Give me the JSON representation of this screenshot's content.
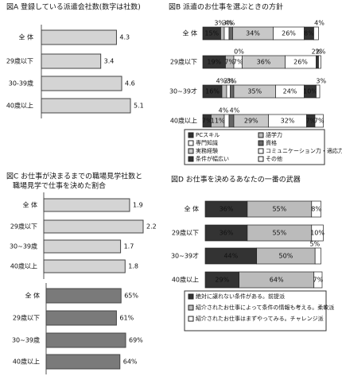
{
  "chart_data": [
    {
      "type": "bar",
      "title": "図A 登録している派遣会社数(数字は社数)",
      "categories": [
        "全 体",
        "29歳以下",
        "30-39歳",
        "40歳以上"
      ],
      "values": [
        4.3,
        3.4,
        4.6,
        5.1
      ],
      "color": "#d4d4d4"
    },
    {
      "type": "stacked_bar",
      "title": "図B 派遣のお仕事を選ぶときの方針",
      "categories": [
        "全 体",
        "29歳以下",
        "30~39才",
        "40歳以上"
      ],
      "series": [
        {
          "name": "PCスキル",
          "color": "#333333",
          "values": [
            15,
            19,
            16,
            7
          ],
          "value_labels": [
            "15%",
            "19%",
            "16%",
            "7%"
          ]
        },
        {
          "name": "語学力",
          "color": "#bbbbbb",
          "values": [
            3,
            7,
            4,
            11
          ],
          "value_labels": [
            "3%",
            "7%",
            "4%",
            "11%"
          ]
        },
        {
          "name": "専門知識",
          "color": "#ffffff",
          "values": [
            4,
            7,
            3,
            4
          ],
          "value_labels": [
            "4%",
            "7%",
            "3%",
            "4%"
          ]
        },
        {
          "name": "資格",
          "color": "#666666",
          "values": [
            3,
            0,
            3,
            4
          ],
          "value_labels": [
            "3%",
            "0%",
            "3%",
            "4%"
          ]
        },
        {
          "name": "実務経験",
          "color": "#c8c8c8",
          "values": [
            34,
            36,
            35,
            29
          ],
          "value_labels": [
            "34%",
            "36%",
            "35%",
            "29%"
          ]
        },
        {
          "name": "コミュニケーション力・適応力",
          "color": "#ffffff",
          "values": [
            26,
            26,
            24,
            32
          ],
          "value_labels": [
            "26%",
            "26%",
            "24%",
            "32%"
          ]
        },
        {
          "name": "条件が幅広い",
          "color": "#333333",
          "values": [
            8,
            2,
            10,
            7
          ],
          "value_labels": [
            "8%",
            "2%",
            "10%",
            "7%"
          ]
        },
        {
          "name": "その他",
          "color": "#ffffff",
          "values": [
            4,
            2,
            3,
            7
          ],
          "value_labels": [
            "4%",
            "2%",
            "3%",
            "7%"
          ]
        }
      ]
    },
    {
      "type": "bar",
      "title": [
        "図C お仕事が決まるまでの職場見学社数と",
        "職場見学で仕事を決めた割合"
      ],
      "categories": [
        "全 体",
        "29歳以下",
        "30~39歳",
        "40歳以上"
      ],
      "values": [
        1.9,
        2.2,
        1.7,
        1.8
      ],
      "color": "#d4d4d4"
    },
    {
      "type": "bar",
      "categories": [
        "全 体",
        "29歳以下",
        "30~39歳",
        "40歳以上"
      ],
      "values": [
        65,
        61,
        69,
        64
      ],
      "value_labels": [
        "65%",
        "61%",
        "69%",
        "64%"
      ],
      "color": "#7a7a7a"
    },
    {
      "type": "stacked_bar",
      "title": "図D お仕事を決めるあなたの一番の武器",
      "categories": [
        "全 体",
        "29歳以下",
        "30~39才",
        "40歳以上"
      ],
      "series": [
        {
          "name": "絶対に譲れない条件がある。前提派",
          "color": "#333333",
          "values": [
            36,
            36,
            44,
            29
          ],
          "value_labels": [
            "36%",
            "36%",
            "44%",
            "29%"
          ]
        },
        {
          "name": "紹介されたお仕事によって条件の情報も考える。柔軟派",
          "color": "#bbbbbb",
          "values": [
            55,
            55,
            50,
            64
          ],
          "value_labels": [
            "55%",
            "55%",
            "50%",
            "64%"
          ]
        },
        {
          "name": "紹介されたお仕事はまずやってみる。チャレンジ派",
          "color": "#ffffff",
          "values": [
            8,
            10,
            5,
            7
          ],
          "value_labels": [
            "8%",
            "10%",
            "5%",
            "7%"
          ]
        }
      ]
    }
  ]
}
